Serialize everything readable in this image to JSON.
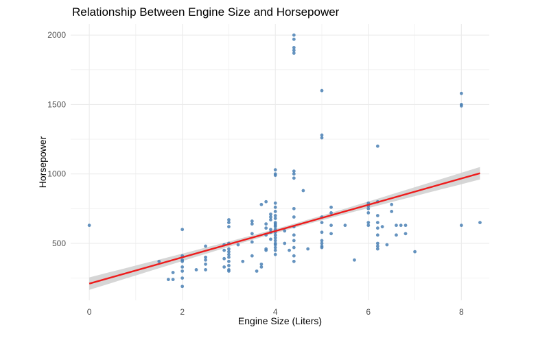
{
  "chart_data": {
    "type": "scatter",
    "title": "Relationship Between Engine Size and Horsepower",
    "xlabel": "Engine Size (Liters)",
    "ylabel": "Horsepower",
    "xlim": [
      -0.4,
      8.6
    ],
    "ylim": [
      90,
      2080
    ],
    "x_ticks": [
      0,
      2,
      4,
      6,
      8
    ],
    "y_ticks": [
      500,
      1000,
      1500,
      2000
    ],
    "x_tick_labels": [
      "0",
      "2",
      "4",
      "6",
      "8"
    ],
    "y_tick_labels": [
      "500",
      "1000",
      "1500",
      "2000"
    ],
    "grid": true,
    "legend": "none",
    "colors": {
      "points": "#4a80b4",
      "trend": "#ee1c1c",
      "band": "#cfcfcf",
      "grid": "#ebebeb"
    },
    "trend_line": {
      "x": [
        0,
        8.4
      ],
      "y": [
        210,
        1005
      ],
      "band_halfwidth_at_ends": 45,
      "band_halfwidth_at_center": 15
    },
    "points": [
      {
        "x": 0,
        "y": 630
      },
      {
        "x": 1.5,
        "y": 370
      },
      {
        "x": 1.7,
        "y": 240
      },
      {
        "x": 1.8,
        "y": 240
      },
      {
        "x": 1.8,
        "y": 290
      },
      {
        "x": 2,
        "y": 600
      },
      {
        "x": 2,
        "y": 410
      },
      {
        "x": 2,
        "y": 380
      },
      {
        "x": 2,
        "y": 370
      },
      {
        "x": 2,
        "y": 330
      },
      {
        "x": 2,
        "y": 300
      },
      {
        "x": 2,
        "y": 250
      },
      {
        "x": 2,
        "y": 190
      },
      {
        "x": 2.3,
        "y": 310
      },
      {
        "x": 2.5,
        "y": 480
      },
      {
        "x": 2.5,
        "y": 400
      },
      {
        "x": 2.5,
        "y": 380
      },
      {
        "x": 2.5,
        "y": 350
      },
      {
        "x": 2.5,
        "y": 310
      },
      {
        "x": 2.9,
        "y": 490
      },
      {
        "x": 2.9,
        "y": 450
      },
      {
        "x": 2.9,
        "y": 390
      },
      {
        "x": 2.9,
        "y": 330
      },
      {
        "x": 3,
        "y": 670
      },
      {
        "x": 3,
        "y": 650
      },
      {
        "x": 3,
        "y": 620
      },
      {
        "x": 3,
        "y": 500
      },
      {
        "x": 3,
        "y": 460
      },
      {
        "x": 3,
        "y": 440
      },
      {
        "x": 3,
        "y": 420
      },
      {
        "x": 3,
        "y": 400
      },
      {
        "x": 3,
        "y": 370
      },
      {
        "x": 3,
        "y": 340
      },
      {
        "x": 3,
        "y": 310
      },
      {
        "x": 3,
        "y": 300
      },
      {
        "x": 3.2,
        "y": 490
      },
      {
        "x": 3.3,
        "y": 370
      },
      {
        "x": 3.5,
        "y": 660
      },
      {
        "x": 3.5,
        "y": 640
      },
      {
        "x": 3.5,
        "y": 570
      },
      {
        "x": 3.5,
        "y": 510
      },
      {
        "x": 3.5,
        "y": 410
      },
      {
        "x": 3.6,
        "y": 300
      },
      {
        "x": 3.7,
        "y": 780
      },
      {
        "x": 3.7,
        "y": 350
      },
      {
        "x": 3.7,
        "y": 330
      },
      {
        "x": 3.8,
        "y": 800
      },
      {
        "x": 3.8,
        "y": 640
      },
      {
        "x": 3.8,
        "y": 610
      },
      {
        "x": 3.8,
        "y": 560
      },
      {
        "x": 3.8,
        "y": 460
      },
      {
        "x": 3.8,
        "y": 450
      },
      {
        "x": 3.9,
        "y": 710
      },
      {
        "x": 3.9,
        "y": 690
      },
      {
        "x": 3.9,
        "y": 670
      },
      {
        "x": 3.9,
        "y": 600
      },
      {
        "x": 3.9,
        "y": 580
      },
      {
        "x": 3.9,
        "y": 530
      },
      {
        "x": 4,
        "y": 1030
      },
      {
        "x": 4,
        "y": 1000
      },
      {
        "x": 4,
        "y": 990
      },
      {
        "x": 4,
        "y": 790
      },
      {
        "x": 4,
        "y": 760
      },
      {
        "x": 4,
        "y": 730
      },
      {
        "x": 4,
        "y": 700
      },
      {
        "x": 4,
        "y": 680
      },
      {
        "x": 4,
        "y": 650
      },
      {
        "x": 4,
        "y": 640
      },
      {
        "x": 4,
        "y": 630
      },
      {
        "x": 4,
        "y": 620
      },
      {
        "x": 4,
        "y": 600
      },
      {
        "x": 4,
        "y": 580
      },
      {
        "x": 4,
        "y": 560
      },
      {
        "x": 4,
        "y": 540
      },
      {
        "x": 4,
        "y": 520
      },
      {
        "x": 4,
        "y": 500
      },
      {
        "x": 4,
        "y": 490
      },
      {
        "x": 4,
        "y": 470
      },
      {
        "x": 4,
        "y": 450
      },
      {
        "x": 4,
        "y": 420
      },
      {
        "x": 4.2,
        "y": 590
      },
      {
        "x": 4.2,
        "y": 500
      },
      {
        "x": 4.3,
        "y": 450
      },
      {
        "x": 4.4,
        "y": 2000
      },
      {
        "x": 4.4,
        "y": 1970
      },
      {
        "x": 4.4,
        "y": 1910
      },
      {
        "x": 4.4,
        "y": 1890
      },
      {
        "x": 4.4,
        "y": 1870
      },
      {
        "x": 4.4,
        "y": 1020
      },
      {
        "x": 4.4,
        "y": 1000
      },
      {
        "x": 4.4,
        "y": 970
      },
      {
        "x": 4.4,
        "y": 750
      },
      {
        "x": 4.4,
        "y": 690
      },
      {
        "x": 4.4,
        "y": 620
      },
      {
        "x": 4.4,
        "y": 560
      },
      {
        "x": 4.4,
        "y": 520
      },
      {
        "x": 4.4,
        "y": 470
      },
      {
        "x": 4.4,
        "y": 410
      },
      {
        "x": 4.4,
        "y": 370
      },
      {
        "x": 4.6,
        "y": 880
      },
      {
        "x": 4.7,
        "y": 460
      },
      {
        "x": 5,
        "y": 1600
      },
      {
        "x": 5,
        "y": 1280
      },
      {
        "x": 5,
        "y": 1260
      },
      {
        "x": 5,
        "y": 690
      },
      {
        "x": 5,
        "y": 650
      },
      {
        "x": 5,
        "y": 580
      },
      {
        "x": 5,
        "y": 520
      },
      {
        "x": 5,
        "y": 500
      },
      {
        "x": 5,
        "y": 480
      },
      {
        "x": 5,
        "y": 470
      },
      {
        "x": 5.2,
        "y": 760
      },
      {
        "x": 5.2,
        "y": 720
      },
      {
        "x": 5.2,
        "y": 630
      },
      {
        "x": 5.2,
        "y": 570
      },
      {
        "x": 5.5,
        "y": 630
      },
      {
        "x": 5.7,
        "y": 380
      },
      {
        "x": 6,
        "y": 790
      },
      {
        "x": 6,
        "y": 770
      },
      {
        "x": 6,
        "y": 750
      },
      {
        "x": 6,
        "y": 720
      },
      {
        "x": 6,
        "y": 650
      },
      {
        "x": 6,
        "y": 630
      },
      {
        "x": 6.2,
        "y": 1200
      },
      {
        "x": 6.2,
        "y": 800
      },
      {
        "x": 6.2,
        "y": 700
      },
      {
        "x": 6.2,
        "y": 650
      },
      {
        "x": 6.2,
        "y": 610
      },
      {
        "x": 6.2,
        "y": 560
      },
      {
        "x": 6.2,
        "y": 500
      },
      {
        "x": 6.2,
        "y": 480
      },
      {
        "x": 6.2,
        "y": 460
      },
      {
        "x": 6.3,
        "y": 620
      },
      {
        "x": 6.4,
        "y": 490
      },
      {
        "x": 6.5,
        "y": 780
      },
      {
        "x": 6.5,
        "y": 730
      },
      {
        "x": 6.6,
        "y": 630
      },
      {
        "x": 6.6,
        "y": 560
      },
      {
        "x": 6.7,
        "y": 630
      },
      {
        "x": 6.8,
        "y": 630
      },
      {
        "x": 6.8,
        "y": 570
      },
      {
        "x": 7,
        "y": 440
      },
      {
        "x": 8,
        "y": 1580
      },
      {
        "x": 8,
        "y": 1500
      },
      {
        "x": 8,
        "y": 1490
      },
      {
        "x": 8,
        "y": 630
      },
      {
        "x": 8.4,
        "y": 650
      }
    ]
  }
}
